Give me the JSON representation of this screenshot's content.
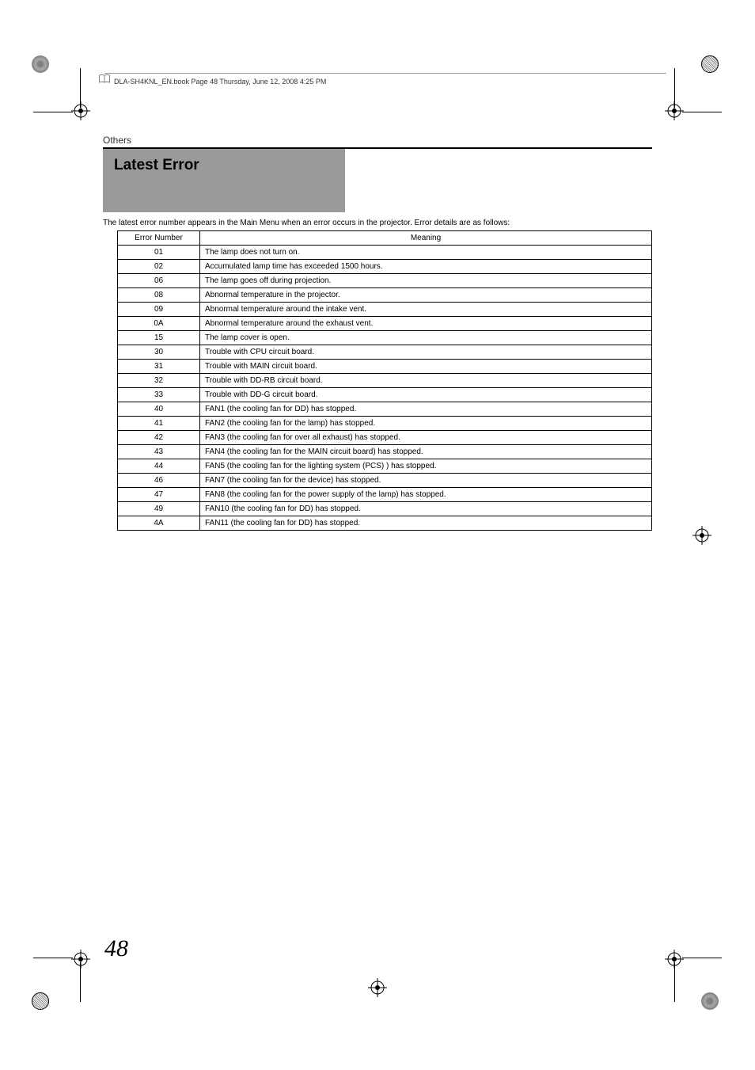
{
  "header": {
    "filename": "DLA-SH4KNL_EN.book  Page 48  Thursday, June 12, 2008  4:25 PM"
  },
  "section_label": "Others",
  "title": "Latest Error",
  "intro": "The latest error number appears in the Main Menu when an error occurs in the projector. Error details are as follows:",
  "table": {
    "headers": [
      "Error Number",
      "Meaning"
    ],
    "rows": [
      [
        "01",
        "The lamp does not turn on."
      ],
      [
        "02",
        "Accumulated lamp time has exceeded 1500 hours."
      ],
      [
        "06",
        "The lamp goes off during projection."
      ],
      [
        "08",
        "Abnormal temperature in the projector."
      ],
      [
        "09",
        "Abnormal temperature around the intake vent."
      ],
      [
        "0A",
        "Abnormal temperature around the exhaust vent."
      ],
      [
        "15",
        "The lamp cover is open."
      ],
      [
        "30",
        "Trouble with CPU circuit board."
      ],
      [
        "31",
        "Trouble with MAIN circuit board."
      ],
      [
        "32",
        "Trouble with DD-RB circuit board."
      ],
      [
        "33",
        "Trouble with DD-G circuit board."
      ],
      [
        "40",
        "FAN1 (the cooling fan for DD) has stopped."
      ],
      [
        "41",
        "FAN2 (the cooling fan for the lamp) has stopped."
      ],
      [
        "42",
        "FAN3 (the cooling fan for over all exhaust) has stopped."
      ],
      [
        "43",
        "FAN4 (the cooling fan for the MAIN circuit board) has stopped."
      ],
      [
        "44",
        "FAN5 (the cooling fan for the lighting system (PCS) ) has stopped."
      ],
      [
        "46",
        "FAN7 (the cooling fan for the device) has stopped."
      ],
      [
        "47",
        "FAN8 (the cooling fan for the power supply of the lamp) has stopped."
      ],
      [
        "49",
        "FAN10 (the cooling fan for DD) has stopped."
      ],
      [
        "4A",
        "FAN11 (the cooling fan for DD) has stopped."
      ]
    ]
  },
  "page_number": "48",
  "colors": {
    "title_bg": "#9a9a9a",
    "text": "#000000",
    "rule": "#000000"
  }
}
